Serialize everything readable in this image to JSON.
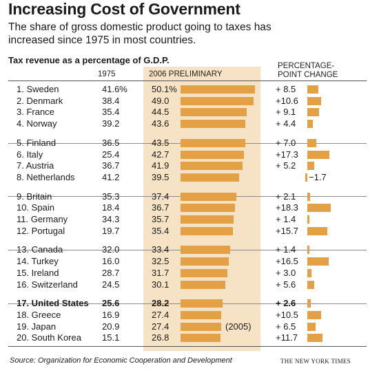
{
  "header": {
    "title": "Increasing Cost of Government",
    "subtitle": "The share of gross domestic product going to taxes has increased since 1975 in most countries.",
    "table_title": "Tax revenue as a percentage of G.D.P.",
    "col_1975": "1975",
    "col_2006": "2006 PRELIMINARY",
    "col_change_1": "PERCENTAGE-",
    "col_change_2": "POINT CHANGE"
  },
  "chart_data": {
    "type": "table",
    "title": "Increasing Cost of Government",
    "subtitle": "The share of gross domestic product going to taxes has increased since 1975 in most countries.",
    "columns": [
      "1975",
      "2006 PRELIMINARY",
      "PERCENTAGE-POINT CHANGE"
    ],
    "rows": [
      {
        "label": "1. Sweden",
        "v1975": "41.6%",
        "v2006": "50.1%",
        "val2006": 50.1,
        "change": "+ 8.5",
        "changeVal": 8.5,
        "group": 0
      },
      {
        "label": "2. Denmark",
        "v1975": "38.4",
        "v2006": "49.0",
        "val2006": 49.0,
        "change": "+10.6",
        "changeVal": 10.6,
        "group": 0
      },
      {
        "label": "3. France",
        "v1975": "35.4",
        "v2006": "44.5",
        "val2006": 44.5,
        "change": "+ 9.1",
        "changeVal": 9.1,
        "group": 0
      },
      {
        "label": "4. Norway",
        "v1975": "39.2",
        "v2006": "43.6",
        "val2006": 43.6,
        "change": "+ 4.4",
        "changeVal": 4.4,
        "group": 0
      },
      {
        "label": "5. Finland",
        "v1975": "36.5",
        "v2006": "43.5",
        "val2006": 43.5,
        "change": "+ 7.0",
        "changeVal": 7.0,
        "group": 1
      },
      {
        "label": "6. Italy",
        "v1975": "25.4",
        "v2006": "42.7",
        "val2006": 42.7,
        "change": "+17.3",
        "changeVal": 17.3,
        "group": 1
      },
      {
        "label": "7. Austria",
        "v1975": "36.7",
        "v2006": "41.9",
        "val2006": 41.9,
        "change": "+ 5.2",
        "changeVal": 5.2,
        "group": 1
      },
      {
        "label": "8. Netherlands",
        "v1975": "41.2",
        "v2006": "39.5",
        "val2006": 39.5,
        "change": "−1.7",
        "changeVal": -1.7,
        "group": 1
      },
      {
        "label": "9. Britain",
        "v1975": "35.3",
        "v2006": "37.4",
        "val2006": 37.4,
        "change": "+ 2.1",
        "changeVal": 2.1,
        "group": 2
      },
      {
        "label": "10. Spain",
        "v1975": "18.4",
        "v2006": "36.7",
        "val2006": 36.7,
        "change": "+18.3",
        "changeVal": 18.3,
        "group": 2
      },
      {
        "label": "11. Germany",
        "v1975": "34.3",
        "v2006": "35.7",
        "val2006": 35.7,
        "change": "+ 1.4",
        "changeVal": 1.4,
        "group": 2
      },
      {
        "label": "12. Portugal",
        "v1975": "19.7",
        "v2006": "35.4",
        "val2006": 35.4,
        "change": "+15.7",
        "changeVal": 15.7,
        "group": 2
      },
      {
        "label": "13. Canada",
        "v1975": "32.0",
        "v2006": "33.4",
        "val2006": 33.4,
        "change": "+ 1.4",
        "changeVal": 1.4,
        "group": 3
      },
      {
        "label": "14. Turkey",
        "v1975": "16.0",
        "v2006": "32.5",
        "val2006": 32.5,
        "change": "+16.5",
        "changeVal": 16.5,
        "group": 3
      },
      {
        "label": "15. Ireland",
        "v1975": "28.7",
        "v2006": "31.7",
        "val2006": 31.7,
        "change": "+ 3.0",
        "changeVal": 3.0,
        "group": 3
      },
      {
        "label": "16. Switzerland",
        "v1975": "24.5",
        "v2006": "30.1",
        "val2006": 30.1,
        "change": "+ 5.6",
        "changeVal": 5.6,
        "group": 3
      },
      {
        "label": "17. United States",
        "v1975": "25.6",
        "v2006": "28.2",
        "val2006": 28.2,
        "change": "+ 2.6",
        "changeVal": 2.6,
        "group": 4,
        "bold": true
      },
      {
        "label": "18. Greece",
        "v1975": "16.9",
        "v2006": "27.4",
        "val2006": 27.4,
        "change": "+10.5",
        "changeVal": 10.5,
        "group": 4
      },
      {
        "label": "19. Japan",
        "v1975": "20.9",
        "v2006": "27.4",
        "val2006": 27.4,
        "change": "+ 6.5",
        "changeVal": 6.5,
        "group": 4,
        "note": "(2005)"
      },
      {
        "label": "20. South Korea",
        "v1975": "15.1",
        "v2006": "26.8",
        "val2006": 26.8,
        "change": "+11.7",
        "changeVal": 11.7,
        "group": 4
      }
    ],
    "bar_color": "#e3a044",
    "highlight_color": "#f6e3c6"
  },
  "footer": {
    "source": "Source: Organization for Economic Cooperation and Development",
    "credit": "THE NEW YORK TIMES"
  }
}
